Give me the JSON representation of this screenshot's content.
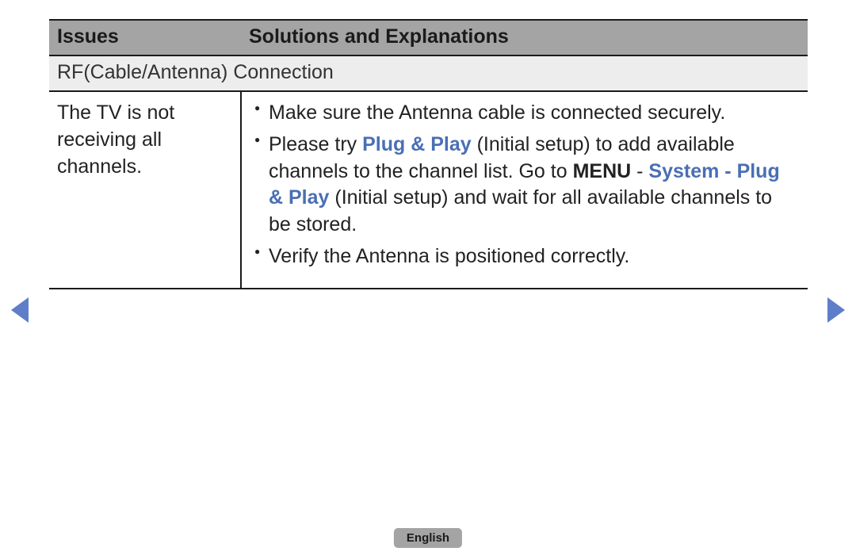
{
  "colors": {
    "header_bg": "#a4a4a4",
    "section_bg": "#ededed",
    "border": "#1a1a1a",
    "link": "#4a6fb3",
    "arrow": "#5e7ec9",
    "text": "#1a1a1a"
  },
  "typography": {
    "family": "Arial, Helvetica, sans-serif",
    "header_pt": 25,
    "section_pt": 25,
    "body_pt": 25,
    "pill_pt": 15
  },
  "table": {
    "columns": {
      "issues": "Issues",
      "solutions": "Solutions and Explanations"
    },
    "section_label": "RF(Cable/Antenna) Connection",
    "row": {
      "issue": "The TV is not receiving all channels.",
      "solutions": {
        "item1": "Make sure the Antenna cable is connected securely.",
        "item2": {
          "pre": "Please try ",
          "link1": "Plug & Play",
          "mid1": " (Initial setup) to add available channels to the channel list. Go to ",
          "bold1": "MENU",
          "dash": " - ",
          "link2": "System - Plug & Play",
          "mid2": " (Initial setup) and wait for all available channels to be stored."
        },
        "item3": "Verify the Antenna is positioned correctly."
      }
    }
  },
  "nav": {
    "prev": "previous-page",
    "next": "next-page"
  },
  "footer": {
    "language": "English"
  }
}
